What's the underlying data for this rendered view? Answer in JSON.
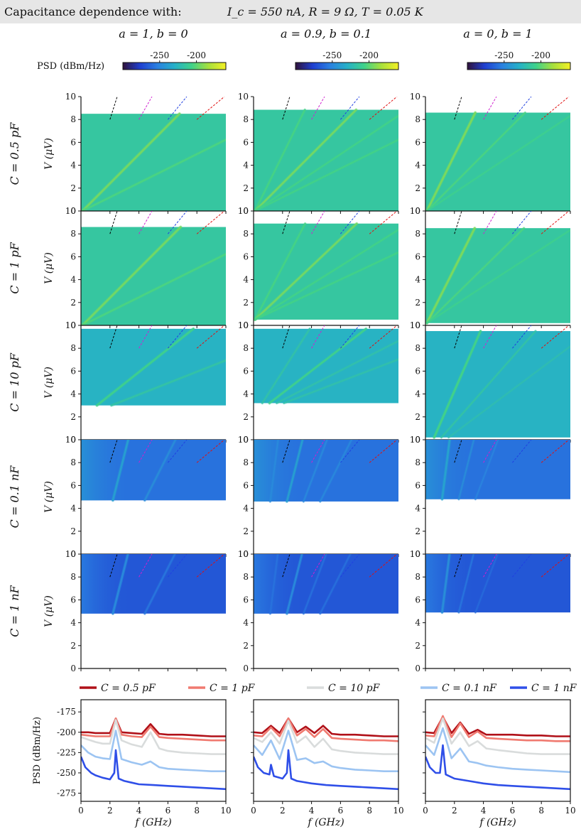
{
  "header": {
    "label": "Capacitance dependence with:",
    "params": "I_c = 550 nA, R = 9 Ω, T = 0.05 K"
  },
  "columns": [
    {
      "title": "a = 1, b = 0"
    },
    {
      "title": "a = 0.9, b = 0.1"
    },
    {
      "title": "a = 0, b = 1"
    }
  ],
  "colorbar": {
    "label": "PSD (dBm/Hz)",
    "ticks": [
      "-250",
      "-200"
    ],
    "tick_values": [
      -250,
      -200
    ],
    "range": [
      -300,
      -160
    ],
    "colormap": [
      "#30123b",
      "#1f3fd0",
      "#2a7fe0",
      "#26b0c8",
      "#3fd28a",
      "#a8e03c",
      "#f4f024"
    ]
  },
  "rows": [
    {
      "label": "C = 0.5 pF"
    },
    {
      "label": "C = 1 pF"
    },
    {
      "label": "C = 10 pF"
    },
    {
      "label": "C = 0.1 nF"
    },
    {
      "label": "C = 1 nF"
    }
  ],
  "heatmap_axes": {
    "ylabel": "V (μV)",
    "yticks": [
      "0",
      "2",
      "4",
      "6",
      "8",
      "10"
    ],
    "ylim": [
      0,
      10
    ],
    "xlim": [
      0,
      10
    ]
  },
  "chart_data": [
    {
      "type": "heatmap",
      "description_rows": "5 capacitance rows × 3 mixing columns",
      "xlim": [
        0,
        10
      ],
      "ylim": [
        0,
        10
      ],
      "ylabel": "V (μV)",
      "data_ranges_v": [
        [
          [
            0,
            8.5
          ],
          [
            0,
            8.85
          ],
          [
            0,
            8.6
          ]
        ],
        [
          [
            0,
            8.6
          ],
          [
            0.5,
            8.9
          ],
          [
            0.2,
            8.5
          ]
        ],
        [
          [
            3.0,
            9.7
          ],
          [
            3.2,
            9.7
          ],
          [
            0.2,
            9.5
          ]
        ],
        [
          [
            4.7,
            10
          ],
          [
            4.6,
            10
          ],
          [
            4.8,
            10
          ]
        ],
        [
          [
            4.8,
            10
          ],
          [
            4.8,
            10
          ],
          [
            4.9,
            10
          ]
        ]
      ],
      "background_level": [
        [
          -215,
          -215,
          -215
        ],
        [
          -215,
          -215,
          -215
        ],
        [
          -228,
          -228,
          -228
        ],
        [
          -258,
          -258,
          -258
        ],
        [
          -268,
          -268,
          -268
        ]
      ],
      "guide_lines": [
        {
          "color": "#000000",
          "f_at_v8": 2.0,
          "f_at_v10": 2.5
        },
        {
          "color": "#d020d0",
          "f_at_v8": 4.0,
          "f_at_v10": 4.9
        },
        {
          "color": "#2040e0",
          "f_at_v8": 6.0,
          "f_at_v10": 7.3
        },
        {
          "color": "#e01010",
          "f_at_v8": 8.0,
          "f_at_v10": 9.9
        }
      ]
    },
    {
      "type": "line",
      "xlabel": "f (GHz)",
      "ylabel": "PSD (dBm/Hz)",
      "xlim": [
        0,
        10
      ],
      "ylim": [
        -285,
        -160
      ],
      "xticks": [
        "0",
        "2",
        "4",
        "6",
        "8",
        "10"
      ],
      "yticks": [
        "-175",
        "-200",
        "-225",
        "-250",
        "-275"
      ],
      "ytick_values": [
        -175,
        -200,
        -225,
        -250,
        -275
      ],
      "xtick_values": [
        0,
        2,
        4,
        6,
        8,
        10
      ],
      "legend_position": "top",
      "series": [
        {
          "name": "C = 0.5 pF",
          "color": "#b01018"
        },
        {
          "name": "C = 1 pF",
          "color": "#f07a70"
        },
        {
          "name": "C = 10 pF",
          "color": "#d9dcdc"
        },
        {
          "name": "C = 0.1 nF",
          "color": "#9cc4f2"
        },
        {
          "name": "C = 1 nF",
          "color": "#2f4fe8"
        }
      ],
      "panels": [
        {
          "column": "a = 1, b = 0",
          "curves": [
            {
              "series": "C = 0.5 pF",
              "x": [
                0,
                0.5,
                1,
                1.5,
                2,
                2.4,
                2.8,
                3.5,
                4.2,
                4.8,
                5.4,
                6,
                7,
                8,
                9,
                10
              ],
              "y": [
                -200,
                -200,
                -201,
                -201,
                -201,
                -183,
                -200,
                -201,
                -202,
                -190,
                -202,
                -203,
                -203,
                -204,
                -205,
                -205
              ]
            },
            {
              "series": "C = 1 pF",
              "x": [
                0,
                0.5,
                1,
                1.5,
                2,
                2.4,
                2.8,
                3.5,
                4.2,
                4.8,
                5.4,
                6,
                7,
                8,
                9,
                10
              ],
              "y": [
                -203,
                -204,
                -205,
                -205,
                -205,
                -183,
                -203,
                -205,
                -206,
                -193,
                -206,
                -207,
                -208,
                -209,
                -210,
                -210
              ]
            },
            {
              "series": "C = 10 pF",
              "x": [
                0,
                0.5,
                1,
                1.5,
                2,
                2.4,
                2.8,
                3.5,
                4.2,
                4.8,
                5.4,
                6,
                7,
                8,
                9,
                10
              ],
              "y": [
                -206,
                -209,
                -212,
                -214,
                -214,
                -185,
                -210,
                -215,
                -218,
                -200,
                -220,
                -223,
                -225,
                -226,
                -227,
                -227
              ]
            },
            {
              "series": "C = 0.1 nF",
              "x": [
                0,
                0.5,
                1,
                1.5,
                2,
                2.4,
                2.8,
                3.5,
                4.2,
                4.8,
                5.4,
                6,
                7,
                8,
                9,
                10
              ],
              "y": [
                -216,
                -225,
                -230,
                -232,
                -233,
                -198,
                -233,
                -237,
                -240,
                -236,
                -243,
                -245,
                -246,
                -247,
                -248,
                -248
              ]
            },
            {
              "series": "C = 1 nF",
              "x": [
                0,
                0.3,
                0.7,
                1,
                1.5,
                2,
                2.3,
                2.4,
                2.6,
                3,
                3.5,
                4,
                5,
                6,
                7,
                8,
                9,
                10
              ],
              "y": [
                -230,
                -243,
                -250,
                -253,
                -256,
                -258,
                -250,
                -222,
                -257,
                -260,
                -262,
                -264,
                -265,
                -266,
                -267,
                -268,
                -269,
                -270
              ]
            }
          ]
        },
        {
          "column": "a = 0.9, b = 0.1",
          "curves": [
            {
              "series": "C = 0.5 pF",
              "x": [
                0,
                0.6,
                1.2,
                1.8,
                2.4,
                3,
                3.6,
                4.2,
                4.8,
                5.4,
                6,
                7,
                8,
                9,
                10
              ],
              "y": [
                -200,
                -201,
                -192,
                -201,
                -183,
                -200,
                -193,
                -201,
                -192,
                -202,
                -203,
                -203,
                -204,
                -205,
                -205
              ]
            },
            {
              "series": "C = 1 pF",
              "x": [
                0,
                0.6,
                1.2,
                1.8,
                2.4,
                3,
                3.6,
                4.2,
                4.8,
                5.4,
                6,
                7,
                8,
                9,
                10
              ],
              "y": [
                -204,
                -205,
                -194,
                -205,
                -183,
                -204,
                -196,
                -206,
                -196,
                -207,
                -208,
                -209,
                -210,
                -210,
                -211
              ]
            },
            {
              "series": "C = 10 pF",
              "x": [
                0,
                0.6,
                1.2,
                1.8,
                2.4,
                3,
                3.6,
                4.2,
                4.8,
                5.4,
                6,
                7,
                8,
                9,
                10
              ],
              "y": [
                -207,
                -212,
                -200,
                -214,
                -186,
                -213,
                -205,
                -218,
                -208,
                -221,
                -223,
                -225,
                -226,
                -227,
                -227
              ]
            },
            {
              "series": "C = 0.1 nF",
              "x": [
                0,
                0.6,
                1.2,
                1.8,
                2.4,
                3,
                3.6,
                4.2,
                4.8,
                5.4,
                6,
                7,
                8,
                9,
                10
              ],
              "y": [
                -216,
                -228,
                -210,
                -233,
                -198,
                -234,
                -232,
                -238,
                -236,
                -242,
                -244,
                -246,
                -247,
                -248,
                -248
              ]
            },
            {
              "series": "C = 1 nF",
              "x": [
                0,
                0.3,
                0.7,
                1.1,
                1.2,
                1.4,
                2,
                2.3,
                2.4,
                2.6,
                3,
                4,
                5,
                6,
                7,
                8,
                9,
                10
              ],
              "y": [
                -230,
                -243,
                -250,
                -252,
                -240,
                -254,
                -257,
                -250,
                -222,
                -257,
                -260,
                -263,
                -265,
                -266,
                -267,
                -268,
                -269,
                -270
              ]
            }
          ]
        },
        {
          "column": "a = 0, b = 1",
          "curves": [
            {
              "series": "C = 0.5 pF",
              "x": [
                0,
                0.6,
                1.2,
                1.8,
                2.4,
                3,
                3.6,
                4.2,
                5,
                6,
                7,
                8,
                9,
                10
              ],
              "y": [
                -200,
                -201,
                -181,
                -201,
                -188,
                -202,
                -197,
                -203,
                -203,
                -203,
                -204,
                -204,
                -205,
                -205
              ]
            },
            {
              "series": "C = 1 pF",
              "x": [
                0,
                0.6,
                1.2,
                1.8,
                2.4,
                3,
                3.6,
                4.2,
                5,
                6,
                7,
                8,
                9,
                10
              ],
              "y": [
                -204,
                -205,
                -180,
                -206,
                -189,
                -206,
                -199,
                -207,
                -208,
                -209,
                -210,
                -210,
                -211,
                -211
              ]
            },
            {
              "series": "C = 10 pF",
              "x": [
                0,
                0.6,
                1.2,
                1.8,
                2.4,
                3,
                3.6,
                4.2,
                5,
                6,
                7,
                8,
                9,
                10
              ],
              "y": [
                -207,
                -213,
                -183,
                -214,
                -200,
                -217,
                -211,
                -220,
                -222,
                -224,
                -226,
                -227,
                -227,
                -227
              ]
            },
            {
              "series": "C = 0.1 nF",
              "x": [
                0,
                0.6,
                1.2,
                1.8,
                2.4,
                3,
                3.6,
                4.2,
                5,
                6,
                7,
                8,
                9,
                10
              ],
              "y": [
                -216,
                -228,
                -195,
                -232,
                -220,
                -236,
                -238,
                -241,
                -243,
                -245,
                -246,
                -247,
                -248,
                -249
              ]
            },
            {
              "series": "C = 1 nF",
              "x": [
                0,
                0.3,
                0.7,
                1,
                1.2,
                1.4,
                2,
                3,
                4,
                5,
                6,
                7,
                8,
                9,
                10
              ],
              "y": [
                -230,
                -243,
                -250,
                -250,
                -216,
                -252,
                -257,
                -260,
                -263,
                -265,
                -266,
                -267,
                -268,
                -269,
                -270
              ]
            }
          ]
        }
      ]
    }
  ]
}
